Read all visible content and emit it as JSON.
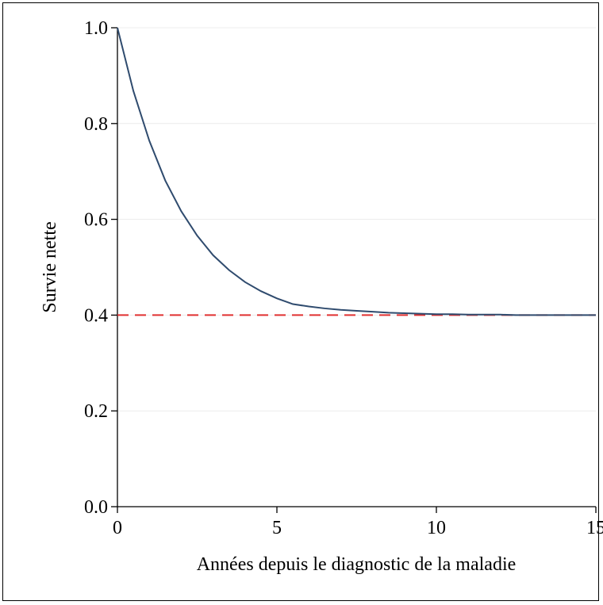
{
  "chart_data": {
    "type": "line",
    "title": "",
    "xlabel": "Années depuis le diagnostic de la maladie",
    "ylabel": "Survie nette",
    "xlim": [
      0,
      15
    ],
    "ylim": [
      0,
      1
    ],
    "x_ticks": [
      0,
      5,
      10,
      15
    ],
    "x_tick_labels": [
      "0",
      "5",
      "10",
      "15"
    ],
    "y_ticks": [
      0,
      0.2,
      0.4,
      0.6,
      0.8,
      1.0
    ],
    "y_tick_labels": [
      "0.0",
      "0.2",
      "0.4",
      "0.6",
      "0.8",
      "1.0"
    ],
    "grid": "horizontal",
    "legend": "none",
    "series": [
      {
        "color": "#2f4b6e",
        "style": "solid",
        "x": [
          0,
          0.5,
          1,
          1.5,
          2,
          2.5,
          3,
          3.5,
          4,
          4.5,
          5,
          5.5,
          6,
          6.5,
          7,
          7.5,
          8,
          8.5,
          9,
          9.5,
          10,
          10.5,
          11,
          11.5,
          12,
          12.5,
          13,
          13.5,
          14,
          14.5,
          15
        ],
        "y": [
          1.0,
          0.868,
          0.764,
          0.681,
          0.617,
          0.566,
          0.525,
          0.494,
          0.469,
          0.45,
          0.435,
          0.423,
          0.418,
          0.414,
          0.411,
          0.409,
          0.407,
          0.405,
          0.404,
          0.403,
          0.402,
          0.402,
          0.401,
          0.401,
          0.401,
          0.4,
          0.4,
          0.4,
          0.4,
          0.4,
          0.4
        ]
      },
      {
        "color": "#e03030",
        "style": "dashed",
        "x": [
          0,
          15
        ],
        "y": [
          0.4,
          0.4
        ]
      }
    ]
  }
}
